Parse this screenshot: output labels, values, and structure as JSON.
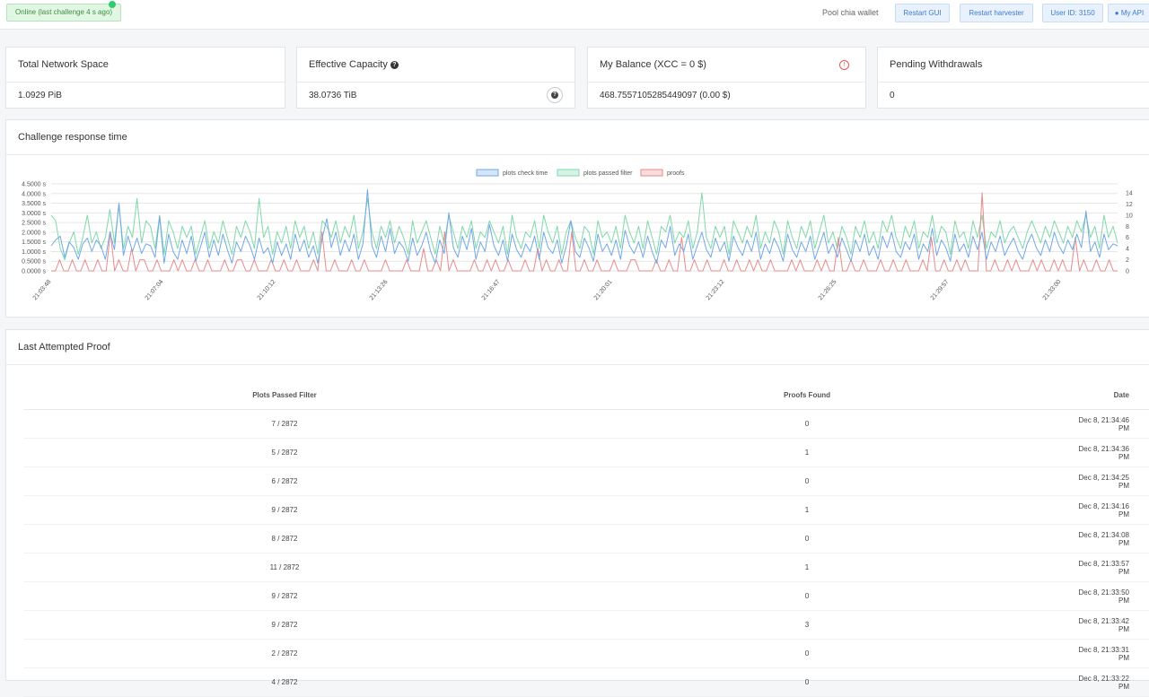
{
  "topbar": {
    "status": "Online (last challenge 4 s ago)",
    "wallet": "Pool chia wallet",
    "buttons": [
      "Restart GUI",
      "Restart harvester",
      "User ID: 3150",
      "My API"
    ]
  },
  "stats": [
    {
      "title": "Total Network Space",
      "value": "1.0929 PiB"
    },
    {
      "title": "Effective Capacity",
      "value": "38.0736 TiB"
    },
    {
      "title": "My Balance (XCC = 0 $)",
      "value": "468.7557105285449097 (0.00 $)"
    },
    {
      "title": "Pending Withdrawals",
      "value": "0"
    }
  ],
  "chart": {
    "title": "Challenge response time",
    "legend": [
      "plots check time",
      "plots passed filter",
      "proofs"
    ]
  },
  "chart_data": {
    "type": "line",
    "title": "Challenge response time",
    "y_left_ticks": [
      "4.5000 s",
      "4.0000 s",
      "3.5000 s",
      "3.0000 s",
      "2.5000 s",
      "2.0000 s",
      "1.5000 s",
      "1.0000 s",
      "0.5000 s",
      "0.0000 s"
    ],
    "y_left_range": [
      0,
      4.5
    ],
    "y_right_ticks": [
      "14",
      "12",
      "10",
      "8",
      "6",
      "4",
      "2",
      "0"
    ],
    "y_right_range": [
      0,
      14
    ],
    "x_ticks": [
      "21:03:48",
      "21:07:04",
      "21:10:12",
      "21:13:26",
      "21:16:47",
      "21:20:01",
      "21:23:12",
      "21:26:25",
      "21:29:57",
      "21:33:00"
    ],
    "series": [
      {
        "name": "plots check time",
        "axis": "left",
        "color": "#6fa8e8",
        "values": [
          1.3,
          1.6,
          1.8,
          0.7,
          1.5,
          1.2,
          0.6,
          1.4,
          1.7,
          1.0,
          1.6,
          1.3,
          0.6,
          2.0,
          1.1,
          3.5,
          0.8,
          1.8,
          1.0,
          1.7,
          0.9,
          1.4,
          1.3,
          0.7,
          2.8,
          0.4,
          1.9,
          1.0,
          0.6,
          1.6,
          0.9,
          1.8,
          0.5,
          1.2,
          2.0,
          0.7,
          1.6,
          0.8,
          1.9,
          1.1,
          0.4,
          1.5,
          1.0,
          1.8,
          1.3,
          0.6,
          1.7,
          0.9,
          1.2,
          0.4,
          1.5,
          0.8,
          1.4,
          0.6,
          1.9,
          1.0,
          1.6,
          0.7,
          1.3,
          0.4,
          1.7,
          2.7,
          1.2,
          2.0,
          0.8,
          1.6,
          1.0,
          1.9,
          0.6,
          1.4,
          4.2,
          1.3,
          0.7,
          1.8,
          1.0,
          2.2,
          0.9,
          1.5,
          1.2,
          0.5,
          1.7,
          0.8,
          1.3,
          2.0,
          1.0,
          0.4,
          1.6,
          0.9,
          3.0,
          1.2,
          0.7,
          1.8,
          1.1,
          2.2,
          0.6,
          1.5,
          1.0,
          2.4,
          1.3,
          0.8,
          1.6,
          0.5,
          1.9,
          1.1,
          0.7,
          1.4,
          1.0,
          1.8,
          0.6,
          2.0,
          1.2,
          0.9,
          1.6,
          0.4,
          1.3,
          2.6,
          1.0,
          0.7,
          1.7,
          1.2,
          0.5,
          1.9,
          1.0,
          1.4,
          0.8,
          1.6,
          0.6,
          2.1,
          1.3,
          0.9,
          1.5,
          0.7,
          1.8,
          1.0,
          0.4,
          1.6,
          1.2,
          2.3,
          0.8,
          1.4,
          1.0,
          1.9,
          0.6,
          1.3,
          2.0,
          1.1,
          0.7,
          1.7,
          1.0,
          1.5,
          0.5,
          1.8,
          1.2,
          0.8,
          1.6,
          1.0,
          2.0,
          0.6,
          1.4,
          0.9,
          1.7,
          1.2,
          0.5,
          1.9,
          1.1,
          0.7,
          1.5,
          1.0,
          1.8,
          0.6,
          1.3,
          2.0,
          0.9,
          1.4,
          0.7,
          1.7,
          1.1,
          0.5,
          1.6,
          1.0,
          1.9,
          0.8,
          1.3,
          0.6,
          1.8,
          1.2,
          2.0,
          1.0,
          0.7,
          1.5,
          1.1,
          1.9,
          0.6,
          1.4,
          1.0,
          2.2,
          0.8,
          1.6,
          1.2,
          0.5,
          1.9,
          1.0,
          1.4,
          0.7,
          1.8,
          1.1,
          2.0,
          0.6,
          1.5,
          1.0,
          1.8,
          0.8,
          1.3,
          1.7,
          1.0,
          0.6,
          1.4,
          1.9,
          1.2,
          0.8,
          1.6,
          1.0,
          2.0,
          1.3,
          0.9,
          1.6,
          1.1,
          1.9,
          1.2,
          3.1,
          1.0,
          1.5,
          0.7,
          1.9,
          1.1,
          1.4,
          1.3
        ]
      },
      {
        "name": "plots passed filter",
        "axis": "right",
        "color": "#7fd8a8",
        "values": [
          10,
          9,
          4,
          2,
          5,
          7,
          3,
          6,
          10,
          5,
          7,
          4,
          6,
          11,
          5,
          12,
          4,
          8,
          6,
          13,
          5,
          9,
          8,
          4,
          10,
          3,
          9,
          7,
          4,
          8,
          6,
          8,
          3,
          6,
          9,
          4,
          7,
          5,
          9,
          6,
          3,
          8,
          6,
          9,
          7,
          4,
          13,
          6,
          8,
          3,
          7,
          5,
          8,
          4,
          9,
          6,
          8,
          4,
          7,
          3,
          9,
          8,
          6,
          9,
          5,
          8,
          6,
          10,
          4,
          7,
          13,
          7,
          4,
          8,
          6,
          9,
          5,
          8,
          6,
          3,
          9,
          5,
          7,
          9,
          6,
          3,
          8,
          5,
          10,
          7,
          4,
          8,
          6,
          9,
          4,
          7,
          6,
          9,
          7,
          5,
          8,
          3,
          10,
          6,
          4,
          7,
          6,
          9,
          4,
          10,
          7,
          5,
          8,
          3,
          7,
          9,
          6,
          4,
          8,
          7,
          3,
          9,
          6,
          7,
          5,
          8,
          4,
          10,
          7,
          5,
          8,
          4,
          9,
          6,
          3,
          8,
          7,
          10,
          5,
          7,
          6,
          9,
          4,
          7,
          14,
          6,
          4,
          8,
          6,
          8,
          3,
          9,
          7,
          5,
          8,
          6,
          10,
          4,
          7,
          5,
          9,
          7,
          3,
          9,
          6,
          4,
          8,
          6,
          9,
          4,
          7,
          10,
          5,
          7,
          4,
          8,
          6,
          3,
          8,
          6,
          9,
          5,
          7,
          4,
          9,
          7,
          10,
          6,
          4,
          8,
          6,
          9,
          4,
          7,
          6,
          10,
          5,
          8,
          7,
          3,
          9,
          6,
          7,
          4,
          9,
          6,
          10,
          4,
          7,
          6,
          9,
          5,
          7,
          8,
          6,
          4,
          7,
          9,
          7,
          5,
          8,
          6,
          9,
          7,
          5,
          8,
          6,
          9,
          7,
          10,
          6,
          8,
          4,
          10,
          6,
          8,
          5
        ]
      },
      {
        "name": "proofs",
        "axis": "right",
        "color": "#e88a8a",
        "values": [
          0,
          0,
          2,
          0,
          0,
          2,
          0,
          0,
          2,
          0,
          0,
          2,
          0,
          0,
          7,
          0,
          2,
          0,
          0,
          4,
          0,
          2,
          2,
          0,
          0,
          2,
          0,
          0,
          0,
          2,
          0,
          2,
          0,
          0,
          2,
          0,
          0,
          2,
          0,
          0,
          0,
          2,
          0,
          0,
          2,
          2,
          0,
          0,
          2,
          0,
          0,
          0,
          2,
          0,
          0,
          2,
          0,
          0,
          2,
          0,
          0,
          0,
          2,
          0,
          7,
          0,
          0,
          2,
          0,
          0,
          0,
          2,
          0,
          0,
          2,
          0,
          0,
          0,
          0,
          2,
          0,
          0,
          0,
          0,
          2,
          0,
          0,
          0,
          4,
          0,
          0,
          2,
          0,
          7,
          0,
          2,
          0,
          0,
          0,
          0,
          2,
          0,
          0,
          2,
          0,
          2,
          0,
          0,
          2,
          0,
          0,
          0,
          2,
          0,
          0,
          4,
          0,
          2,
          0,
          0,
          2,
          0,
          0,
          7,
          0,
          0,
          2,
          0,
          0,
          2,
          0,
          0,
          0,
          2,
          0,
          0,
          0,
          2,
          2,
          0,
          0,
          0,
          0,
          2,
          0,
          0,
          2,
          0,
          0,
          6,
          0,
          0,
          2,
          0,
          0,
          2,
          0,
          0,
          0,
          2,
          0,
          0,
          2,
          0,
          0,
          2,
          0,
          2,
          0,
          0,
          2,
          0,
          0,
          0,
          0,
          2,
          0,
          2,
          0,
          0,
          0,
          2,
          0,
          2,
          0,
          0,
          6,
          0,
          0,
          2,
          0,
          0,
          2,
          0,
          0,
          0,
          2,
          0,
          0,
          2,
          0,
          0,
          2,
          0,
          0,
          0,
          2,
          0,
          6,
          0,
          0,
          2,
          0,
          0,
          2,
          0,
          2,
          0,
          0,
          0,
          14,
          0,
          0,
          2,
          0,
          0,
          2,
          0,
          2,
          0,
          0,
          0,
          2,
          0,
          2,
          0,
          0,
          2,
          0,
          2,
          0,
          0,
          6,
          0,
          2,
          0,
          0,
          2,
          0,
          0,
          2,
          0,
          0
        ]
      }
    ]
  },
  "proofs_section": {
    "title": "Last Attempted Proof",
    "headers": [
      "Plots Passed Filter",
      "Proofs Found",
      "Date"
    ],
    "rows": [
      [
        "7 / 2872",
        "0",
        "Dec 8, 21:34:46 PM"
      ],
      [
        "5 / 2872",
        "1",
        "Dec 8, 21:34:36 PM"
      ],
      [
        "6 / 2872",
        "0",
        "Dec 8, 21:34:25 PM"
      ],
      [
        "9 / 2872",
        "1",
        "Dec 8, 21:34:16 PM"
      ],
      [
        "8 / 2872",
        "0",
        "Dec 8, 21:34:08 PM"
      ],
      [
        "11 / 2872",
        "1",
        "Dec 8, 21:33:57 PM"
      ],
      [
        "9 / 2872",
        "0",
        "Dec 8, 21:33:50 PM"
      ],
      [
        "9 / 2872",
        "3",
        "Dec 8, 21:33:42 PM"
      ],
      [
        "2 / 2872",
        "0",
        "Dec 8, 21:33:31 PM"
      ],
      [
        "4 / 2872",
        "0",
        "Dec 8, 21:33:22 PM"
      ]
    ]
  }
}
